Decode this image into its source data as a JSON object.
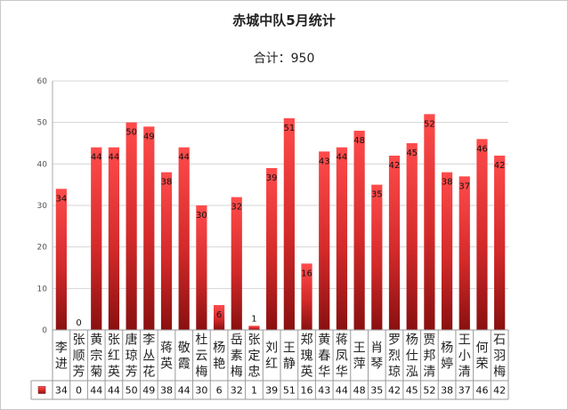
{
  "chart_data": {
    "type": "bar",
    "title": "赤城中队5月统计",
    "subtitle": "合计：950",
    "categories": [
      "李进",
      "张顺芳",
      "黄宗菊",
      "张红英",
      "唐琼芳",
      "李丛花",
      "蒋英",
      "敬霞",
      "杜云梅",
      "杨艳",
      "岳素梅",
      "张定忠",
      "刘红",
      "王静",
      "郑瑰英",
      "黄春华",
      "蒋凤华",
      "王萍",
      "肖琴",
      "罗烈琼",
      "杨仕泓",
      "贾邦清",
      "杨婷",
      "王小清",
      "何荣",
      "石羽梅"
    ],
    "values": [
      34,
      0,
      44,
      44,
      50,
      49,
      38,
      44,
      30,
      6,
      32,
      1,
      39,
      51,
      16,
      43,
      44,
      48,
      35,
      42,
      45,
      52,
      38,
      37,
      46,
      42
    ],
    "ylim": [
      0,
      60
    ],
    "yticks": [
      0,
      10,
      20,
      30,
      40,
      50,
      60
    ],
    "grid": true,
    "legend": "data-table-left",
    "bar_color_top": "#ff4b4b",
    "bar_color_bottom": "#8a1010"
  }
}
